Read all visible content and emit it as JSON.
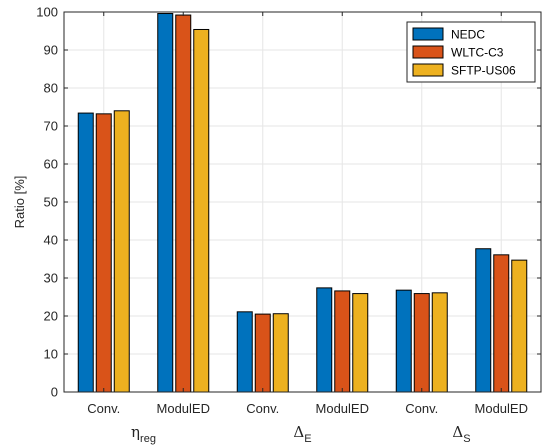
{
  "chart_data": {
    "type": "bar",
    "title": "",
    "xlabel": "",
    "ylabel": "Ratio [%]",
    "ylim": [
      0,
      100
    ],
    "yticks": [
      0,
      10,
      20,
      30,
      40,
      50,
      60,
      70,
      80,
      90,
      100
    ],
    "grid": true,
    "legend_position": "top-right",
    "categories": [
      "Conv.",
      "ModulED",
      "Conv.",
      "ModulED",
      "Conv.",
      "ModulED"
    ],
    "groups": [
      {
        "symbol": "η",
        "subscript": "reg"
      },
      {
        "symbol": "Δ",
        "subscript": "E"
      },
      {
        "symbol": "Δ",
        "subscript": "S"
      }
    ],
    "series": [
      {
        "name": "NEDC",
        "color": "#0072BD",
        "values": [
          73.4,
          99.6,
          21.1,
          27.4,
          26.8,
          37.7
        ]
      },
      {
        "name": "WLTC-C3",
        "color": "#D95319",
        "values": [
          73.2,
          99.2,
          20.5,
          26.6,
          25.9,
          36.1
        ]
      },
      {
        "name": "SFTP-US06",
        "color": "#EDB120",
        "values": [
          74.0,
          95.4,
          20.6,
          25.9,
          26.1,
          34.7
        ]
      }
    ]
  }
}
